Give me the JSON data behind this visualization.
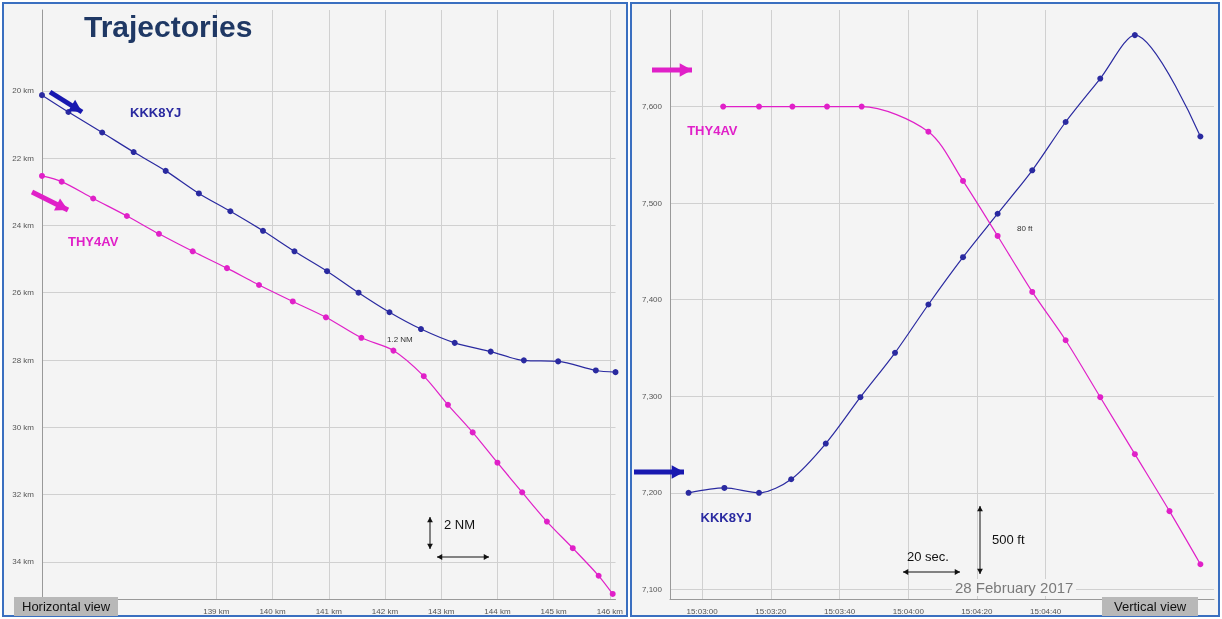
{
  "chart_data": [
    {
      "type": "line",
      "title": "Trajectories",
      "marker": "circle",
      "grid": true,
      "xlim": [
        135.9,
        146.1
      ],
      "xticks": [
        {
          "value": 139,
          "label": "139 km"
        },
        {
          "value": 140,
          "label": "140 km"
        },
        {
          "value": 141,
          "label": "141 km"
        },
        {
          "value": 142,
          "label": "142 km"
        },
        {
          "value": 143,
          "label": "143 km"
        },
        {
          "value": 144,
          "label": "144 km"
        },
        {
          "value": 145,
          "label": "145 km"
        },
        {
          "value": 146,
          "label": "146 km"
        }
      ],
      "ylim": [
        35.1,
        17.6
      ],
      "yticks": [
        {
          "value": 20,
          "label": "20 km"
        },
        {
          "value": 22,
          "label": "22 km"
        },
        {
          "value": 24,
          "label": "24 km"
        },
        {
          "value": 26,
          "label": "26 km"
        },
        {
          "value": 28,
          "label": "28 km"
        },
        {
          "value": 30,
          "label": "30 km"
        },
        {
          "value": 32,
          "label": "32 km"
        },
        {
          "value": 34,
          "label": "34 km"
        }
      ],
      "series": [
        {
          "name": "KKK8YJ",
          "color": "#2a2aa0",
          "x": [
            135.9,
            136.37,
            136.97,
            137.53,
            138.1,
            138.69,
            139.25,
            139.83,
            140.39,
            140.97,
            141.53,
            142.08,
            142.64,
            143.24,
            143.88,
            144.47,
            145.08,
            145.75,
            146.1
          ],
          "values": [
            20.13,
            20.63,
            21.24,
            21.82,
            22.38,
            23.05,
            23.58,
            24.16,
            24.77,
            25.36,
            26.0,
            26.58,
            27.08,
            27.49,
            27.75,
            28.01,
            28.04,
            28.31,
            28.36
          ]
        },
        {
          "name": "THY4AV",
          "color": "#e020c8",
          "x": [
            135.9,
            136.25,
            136.81,
            137.41,
            137.98,
            138.58,
            139.19,
            139.76,
            140.36,
            140.95,
            141.58,
            142.15,
            142.69,
            143.12,
            143.56,
            144.0,
            144.44,
            144.88,
            145.34,
            145.8,
            146.05
          ],
          "values": [
            22.53,
            22.7,
            23.2,
            23.72,
            24.25,
            24.77,
            25.27,
            25.77,
            26.26,
            26.73,
            27.34,
            27.72,
            28.48,
            29.33,
            30.15,
            31.05,
            31.93,
            32.8,
            33.59,
            34.41,
            34.95
          ]
        }
      ],
      "annotations": [
        "1.2 NM",
        "2 NM",
        "Horizontal view"
      ]
    },
    {
      "type": "line",
      "marker": "circle",
      "grid": true,
      "xlim": [
        15.0474,
        15.0914
      ],
      "xticks": [
        {
          "value": 15.05,
          "label": "15:03:00"
        },
        {
          "value": 15.05556,
          "label": "15:03:20"
        },
        {
          "value": 15.06111,
          "label": "15:03:40"
        },
        {
          "value": 15.06667,
          "label": "15:04:00"
        },
        {
          "value": 15.07222,
          "label": "15:04:20"
        },
        {
          "value": 15.07778,
          "label": "15:04:40"
        }
      ],
      "ylim": [
        7090,
        7700
      ],
      "yticks": [
        {
          "value": 7100,
          "label": "7,100"
        },
        {
          "value": 7200,
          "label": "7,200"
        },
        {
          "value": 7300,
          "label": "7,300"
        },
        {
          "value": 7400,
          "label": "7,400"
        },
        {
          "value": 7500,
          "label": "7,500"
        },
        {
          "value": 7600,
          "label": "7,600"
        }
      ],
      "series": [
        {
          "name": "KKK8YJ",
          "color": "#2a2aa0",
          "x": [
            15.0489,
            15.0518,
            15.0546,
            15.0572,
            15.06,
            15.0628,
            15.0656,
            15.0683,
            15.0711,
            15.0739,
            15.0767,
            15.0794,
            15.0822,
            15.085,
            15.0903
          ],
          "values": [
            7200,
            7205,
            7200,
            7214,
            7251,
            7299,
            7345,
            7395,
            7444,
            7489,
            7534,
            7584,
            7629,
            7674,
            7569
          ]
        },
        {
          "name": "THY4AV",
          "color": "#e020c8",
          "x": [
            15.0517,
            15.0546,
            15.0573,
            15.0601,
            15.0629,
            15.0683,
            15.0711,
            15.0739,
            15.0767,
            15.0794,
            15.0822,
            15.085,
            15.0878,
            15.0903
          ],
          "values": [
            7600,
            7600,
            7600,
            7600,
            7600,
            7574,
            7523,
            7466,
            7408,
            7358,
            7299,
            7240,
            7181,
            7126
          ]
        }
      ],
      "annotations": [
        "80 ft",
        "20 sec.",
        "500 ft",
        "28 February 2017",
        "Vertical view"
      ]
    }
  ]
}
